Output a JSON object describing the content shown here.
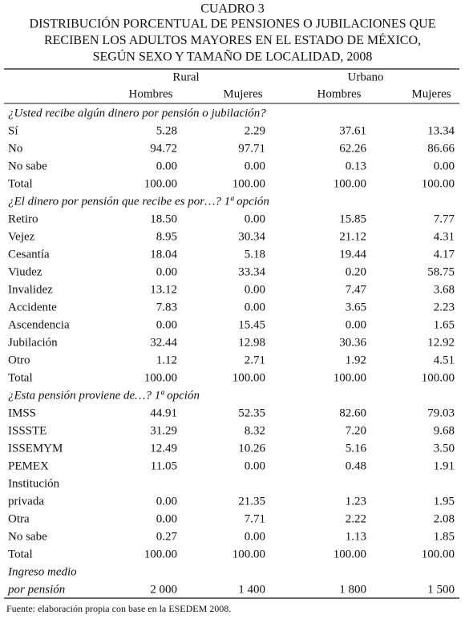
{
  "title": {
    "number": "CUADRO 3",
    "lines": [
      "DISTRIBUCIÓN PORCENTUAL DE PENSIONES O JUBILACIONES QUE",
      "RECIBEN LOS ADULTOS MAYORES EN EL ESTADO DE MÉXICO,",
      "SEGÚN SEXO Y TAMAÑO DE LOCALIDAD, 2008"
    ]
  },
  "table": {
    "group_headers": [
      "Rural",
      "Urbano"
    ],
    "column_headers": [
      "Hombres",
      "Mujeres",
      "Hombres",
      "Mujeres"
    ],
    "sections": [
      {
        "heading": "¿Usted recibe algún dinero por pensión o jubilación?",
        "rows": [
          {
            "label": [
              "Sí"
            ],
            "values": [
              "5.28",
              "2.29",
              "37.61",
              "13.34"
            ]
          },
          {
            "label": [
              "No"
            ],
            "values": [
              "94.72",
              "97.71",
              "62.26",
              "86.66"
            ]
          },
          {
            "label": [
              "No sabe"
            ],
            "values": [
              "0.00",
              "0.00",
              "0.13",
              "0.00"
            ]
          },
          {
            "label": [
              "Total"
            ],
            "values": [
              "100.00",
              "100.00",
              "100.00",
              "100.00"
            ]
          }
        ]
      },
      {
        "heading": "¿El dinero por pensión que recibe es por…? 1ª opción",
        "rows": [
          {
            "label": [
              "Retiro"
            ],
            "values": [
              "18.50",
              "0.00",
              "15.85",
              "7.77"
            ]
          },
          {
            "label": [
              "Vejez"
            ],
            "values": [
              "8.95",
              "30.34",
              "21.12",
              "4.31"
            ]
          },
          {
            "label": [
              "Cesantía"
            ],
            "values": [
              "18.04",
              "5.18",
              "19.44",
              "4.17"
            ]
          },
          {
            "label": [
              "Viudez"
            ],
            "values": [
              "0.00",
              "33.34",
              "0.20",
              "58.75"
            ]
          },
          {
            "label": [
              "Invalidez"
            ],
            "values": [
              "13.12",
              "0.00",
              "7.47",
              "3.68"
            ]
          },
          {
            "label": [
              "Accidente"
            ],
            "values": [
              "7.83",
              "0.00",
              "3.65",
              "2.23"
            ]
          },
          {
            "label": [
              "Ascendencia"
            ],
            "values": [
              "0.00",
              "15.45",
              "0.00",
              "1.65"
            ]
          },
          {
            "label": [
              "Jubilación"
            ],
            "values": [
              "32.44",
              "12.98",
              "30.36",
              "12.92"
            ]
          },
          {
            "label": [
              "Otro"
            ],
            "values": [
              "1.12",
              "2.71",
              "1.92",
              "4.51"
            ]
          },
          {
            "label": [
              "Total"
            ],
            "values": [
              "100.00",
              "100.00",
              "100.00",
              "100.00"
            ]
          }
        ]
      },
      {
        "heading": "¿Esta pensión proviene de…? 1ª opción",
        "rows": [
          {
            "label": [
              "IMSS"
            ],
            "values": [
              "44.91",
              "52.35",
              "82.60",
              "79.03"
            ]
          },
          {
            "label": [
              "ISSSTE"
            ],
            "values": [
              "31.29",
              "8.32",
              "7.20",
              "9.68"
            ]
          },
          {
            "label": [
              "ISSEMYM"
            ],
            "values": [
              "12.49",
              "10.26",
              "5.16",
              "3.50"
            ]
          },
          {
            "label": [
              "PEMEX"
            ],
            "values": [
              "11.05",
              "0.00",
              "0.48",
              "1.91"
            ]
          },
          {
            "label": [
              "Institución",
              "privada"
            ],
            "values": [
              "0.00",
              "21.35",
              "1.23",
              "1.95"
            ]
          },
          {
            "label": [
              "Otra"
            ],
            "values": [
              "0.00",
              "7.71",
              "2.22",
              "2.08"
            ]
          },
          {
            "label": [
              "No sabe"
            ],
            "values": [
              "0.27",
              "0.00",
              "1.13",
              "1.85"
            ]
          },
          {
            "label": [
              "Total"
            ],
            "values": [
              "100.00",
              "100.00",
              "100.00",
              "100.00"
            ]
          }
        ]
      }
    ],
    "summary_row": {
      "label": [
        "Ingreso medio",
        "por pensión"
      ],
      "values": [
        "2 000",
        "1 400",
        "1 800",
        "1 500"
      ]
    }
  },
  "footnote": "Fuente: elaboración propia con base en la ESEDEM 2008."
}
